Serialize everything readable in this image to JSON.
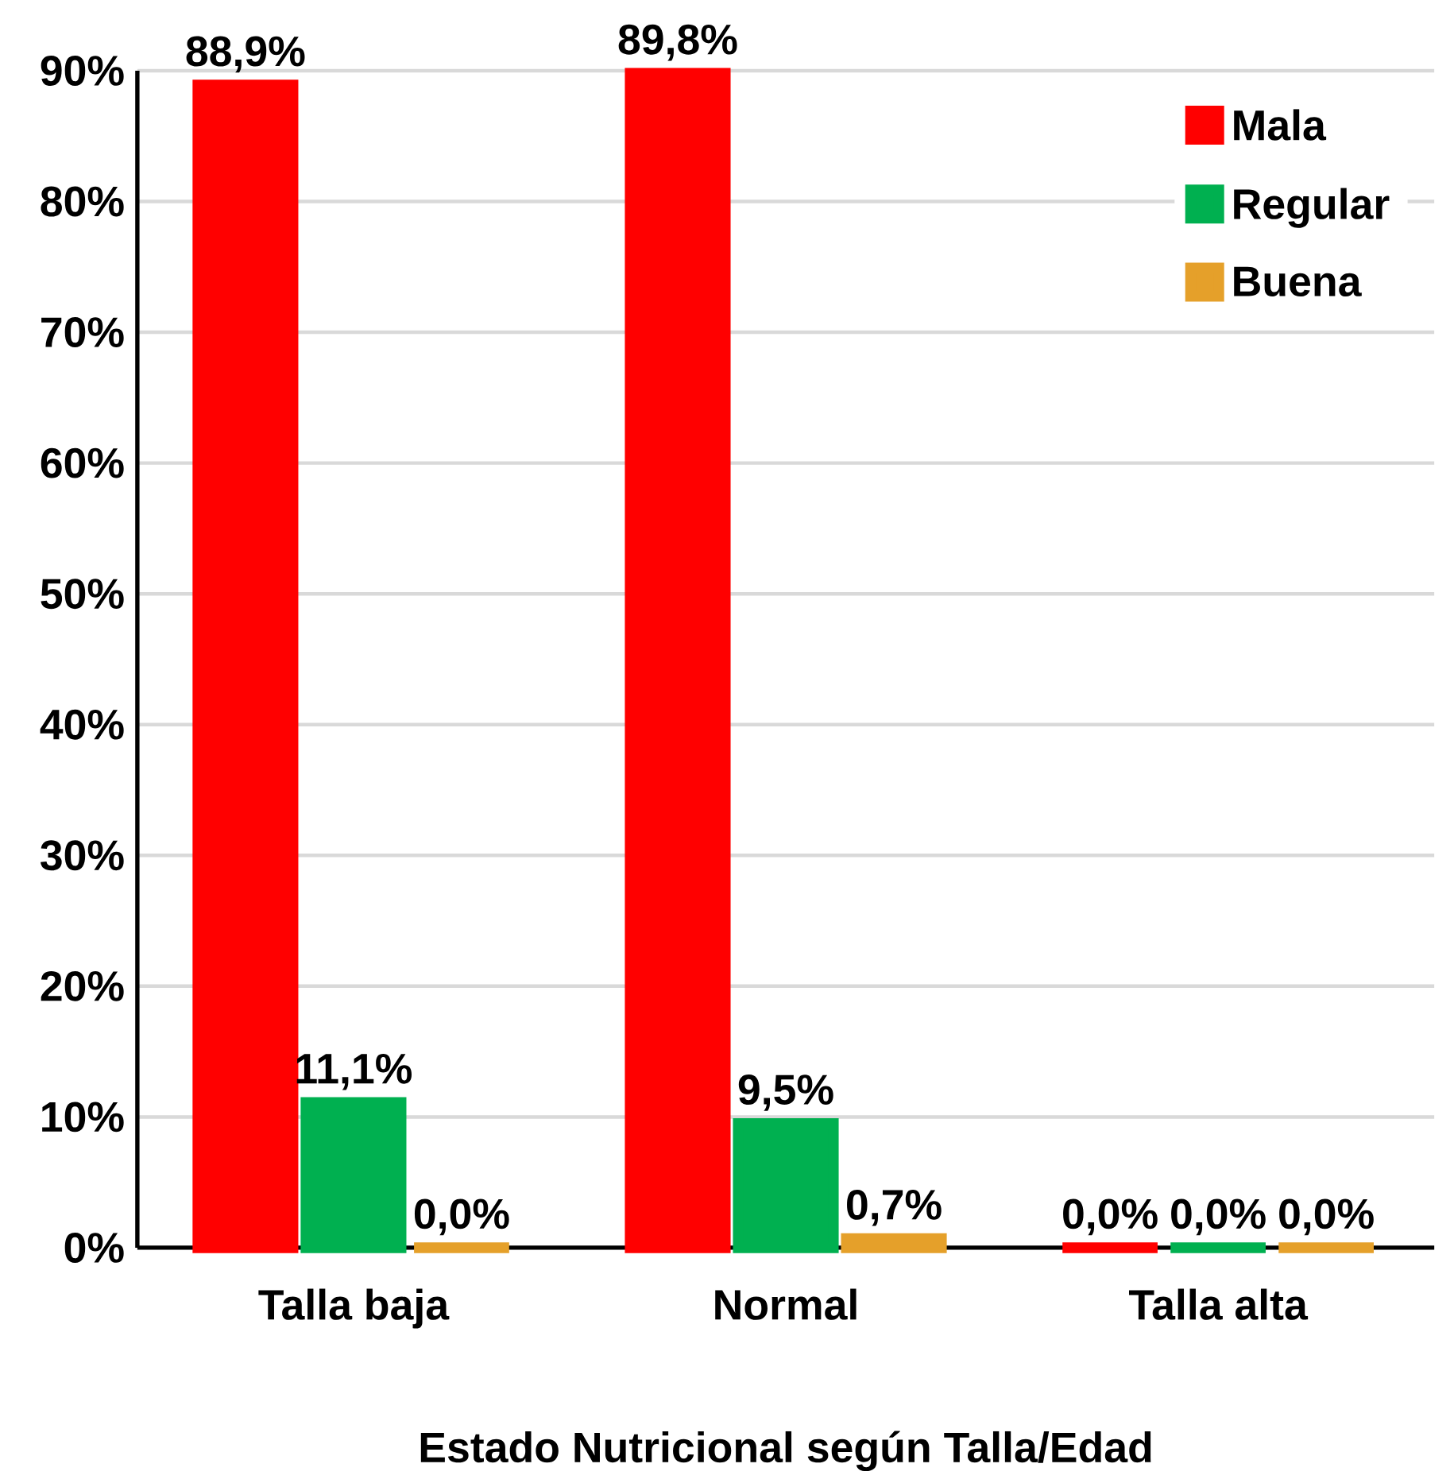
{
  "chart_data": {
    "type": "bar",
    "xlabel": "Estado Nutricional según Talla/Edad",
    "categories": [
      "Talla baja",
      "Normal",
      "Talla alta"
    ],
    "series": [
      {
        "name": "Mala",
        "color": "#ff0000",
        "values": [
          88.9,
          89.8,
          0.0
        ],
        "value_labels": [
          "88,9%",
          "89,8%",
          "0,0%"
        ]
      },
      {
        "name": "Regular",
        "color": "#00b050",
        "values": [
          11.1,
          9.5,
          0.0
        ],
        "value_labels": [
          "11,1%",
          "9,5%",
          "0,0%"
        ]
      },
      {
        "name": "Buena",
        "color": "#e5a02a",
        "values": [
          0.0,
          0.7,
          0.0
        ],
        "value_labels": [
          "0,0%",
          "0,7%",
          "0,0%"
        ]
      }
    ],
    "ylim": [
      0,
      90
    ],
    "yticks": [
      {
        "value": 0,
        "label": "0%"
      },
      {
        "value": 10,
        "label": "10%"
      },
      {
        "value": 20,
        "label": "20%"
      },
      {
        "value": 30,
        "label": "30%"
      },
      {
        "value": 40,
        "label": "40%"
      },
      {
        "value": 50,
        "label": "50%"
      },
      {
        "value": 60,
        "label": "60%"
      },
      {
        "value": 70,
        "label": "70%"
      },
      {
        "value": 80,
        "label": "80%"
      },
      {
        "value": 90,
        "label": "90%"
      }
    ],
    "grid": "y",
    "legend": "top right"
  }
}
